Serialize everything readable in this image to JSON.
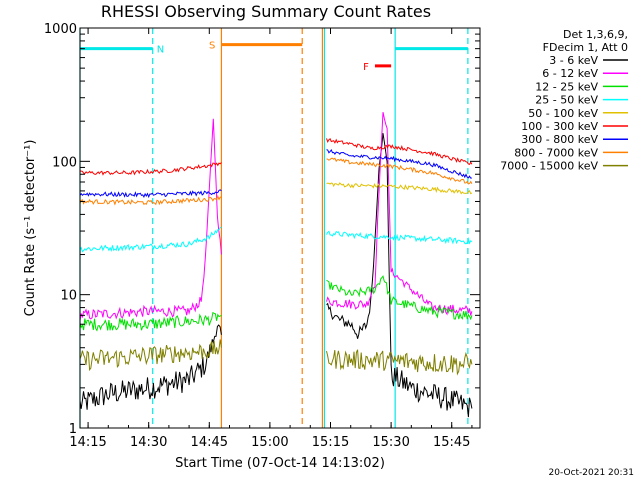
{
  "chart_data": {
    "type": "line",
    "title": "RHESSI Observing Summary Count Rates",
    "xlabel": "Start Time (07-Oct-14 14:13:02)",
    "ylabel": "Count Rate (s⁻¹ detector⁻¹)",
    "yscale": "log",
    "ylim": [
      1,
      1000
    ],
    "xlim": [
      "14:13",
      "15:52"
    ],
    "x_ticks": [
      "14:15",
      "14:30",
      "14:45",
      "15:00",
      "15:15",
      "15:30",
      "15:45"
    ],
    "y_ticks": [
      "1",
      "10",
      "100",
      "1000"
    ],
    "grid": false,
    "legend_header": [
      "Det 1,3,6,9,",
      "FDecim 1, Att 0"
    ],
    "legend_position": "right",
    "series": [
      {
        "name": "3 - 6 keV",
        "color": "#000000",
        "segments": [
          {
            "x": [
              "14:13",
              "14:20",
              "14:30",
              "14:40",
              "14:44",
              "14:46",
              "14:47",
              "14:48"
            ],
            "y": [
              1.5,
              1.8,
              2.0,
              2.3,
              3.0,
              4.5,
              6.0,
              5.0
            ]
          },
          {
            "x": [
              "15:14",
              "15:17",
              "15:20",
              "15:22",
              "15:24",
              "15:25",
              "15:26",
              "15:27",
              "15:28",
              "15:29",
              "15:30",
              "15:35",
              "15:45",
              "15:50"
            ],
            "y": [
              8.0,
              6.5,
              6.0,
              5.0,
              6.0,
              9.0,
              25,
              90,
              160,
              100,
              2.5,
              2.0,
              1.6,
              1.4
            ]
          }
        ]
      },
      {
        "name": "6 - 12 keV",
        "color": "#ff00ff",
        "segments": [
          {
            "x": [
              "14:13",
              "14:30",
              "14:40",
              "14:43",
              "14:44",
              "14:45",
              "14:46",
              "14:47",
              "14:48"
            ],
            "y": [
              7.0,
              7.5,
              7.5,
              9.0,
              18,
              60,
              210,
              40,
              20
            ]
          },
          {
            "x": [
              "15:14",
              "15:20",
              "15:24",
              "15:26",
              "15:27",
              "15:28",
              "15:29",
              "15:30",
              "15:40",
              "15:50"
            ],
            "y": [
              9.0,
              8.5,
              8.5,
              12,
              60,
              230,
              180,
              15,
              8.0,
              7.5
            ]
          }
        ]
      },
      {
        "name": "12 - 25 keV",
        "color": "#00e000",
        "segments": [
          {
            "x": [
              "14:13",
              "14:30",
              "14:45",
              "14:48"
            ],
            "y": [
              6.0,
              6.0,
              6.5,
              7.0
            ]
          },
          {
            "x": [
              "15:14",
              "15:20",
              "15:26",
              "15:28",
              "15:30",
              "15:40",
              "15:50"
            ],
            "y": [
              12,
              10,
              11,
              14,
              9.0,
              7.5,
              7.0
            ]
          }
        ]
      },
      {
        "name": "25 - 50 keV",
        "color": "#00ffff",
        "segments": [
          {
            "x": [
              "14:13",
              "14:30",
              "14:40",
              "14:45",
              "14:48"
            ],
            "y": [
              22,
              23,
              24,
              27,
              32
            ]
          },
          {
            "x": [
              "15:14",
              "15:20",
              "15:30",
              "15:40",
              "15:50"
            ],
            "y": [
              29,
              28,
              27,
              26,
              25
            ]
          }
        ]
      },
      {
        "name": "50 - 100 keV",
        "color": "#e0c000",
        "segments": [
          {
            "x": [
              "15:14",
              "15:20",
              "15:30",
              "15:40",
              "15:50"
            ],
            "y": [
              68,
              66,
              65,
              62,
              58
            ]
          }
        ]
      },
      {
        "name": "100 - 300 keV",
        "color": "#ff0000",
        "segments": [
          {
            "x": [
              "14:13",
              "14:25",
              "14:35",
              "14:45",
              "14:48"
            ],
            "y": [
              82,
              82,
              85,
              93,
              98
            ]
          },
          {
            "x": [
              "15:14",
              "15:20",
              "15:25",
              "15:30",
              "15:40",
              "15:50"
            ],
            "y": [
              145,
              135,
              125,
              130,
              115,
              95
            ]
          }
        ]
      },
      {
        "name": "300 - 800 keV",
        "color": "#0000ff",
        "segments": [
          {
            "x": [
              "14:13",
              "14:30",
              "14:45",
              "14:48"
            ],
            "y": [
              57,
              56,
              58,
              60
            ]
          },
          {
            "x": [
              "15:14",
              "15:20",
              "15:30",
              "15:40",
              "15:50"
            ],
            "y": [
              120,
              110,
              105,
              95,
              75
            ]
          }
        ]
      },
      {
        "name": "800 - 7000 keV",
        "color": "#ff8000",
        "segments": [
          {
            "x": [
              "14:13",
              "14:30",
              "14:45",
              "14:48"
            ],
            "y": [
              50,
              49,
              52,
              54
            ]
          },
          {
            "x": [
              "15:14",
              "15:20",
              "15:30",
              "15:40",
              "15:50"
            ],
            "y": [
              105,
              98,
              92,
              82,
              68
            ]
          }
        ]
      },
      {
        "name": "7000 - 15000 keV",
        "color": "#808000",
        "segments": [
          {
            "x": [
              "14:13",
              "14:30",
              "14:45",
              "14:48"
            ],
            "y": [
              3.2,
              3.5,
              3.8,
              4.0
            ]
          },
          {
            "x": [
              "15:14",
              "15:30",
              "15:50"
            ],
            "y": [
              3.3,
              3.2,
              3.0
            ]
          }
        ]
      }
    ],
    "intervals": [
      {
        "label": "N",
        "color": "#00e8e8",
        "start": "14:13",
        "end": "14:31",
        "y": 700
      },
      {
        "label": "S",
        "color": "#ff8000",
        "start": "14:48",
        "end": "15:08",
        "y": 750
      },
      {
        "label": "F",
        "color": "#ff0000",
        "start": "15:26",
        "end": "15:30",
        "y": 520
      },
      {
        "label": "",
        "color": "#00e8e8",
        "start": "15:31",
        "end": "15:49",
        "y": 700
      }
    ],
    "vlines": [
      {
        "x": "14:13",
        "color": "#00e8e8",
        "style": "solid"
      },
      {
        "x": "14:31",
        "color": "#00e8e8",
        "style": "dashed"
      },
      {
        "x": "14:48",
        "color": "#ff8000",
        "style": "solid"
      },
      {
        "x": "15:08",
        "color": "#ff8000",
        "style": "dashed"
      },
      {
        "x": "15:13",
        "color": "#ff8000",
        "style": "solid"
      },
      {
        "x": "15:13.5",
        "color": "#00e8e8",
        "style": "solid"
      },
      {
        "x": "15:31",
        "color": "#00e8e8",
        "style": "solid"
      },
      {
        "x": "15:49",
        "color": "#00e8e8",
        "style": "dashed"
      }
    ]
  },
  "footer": {
    "timestamp": "20-Oct-2021 20:31"
  }
}
